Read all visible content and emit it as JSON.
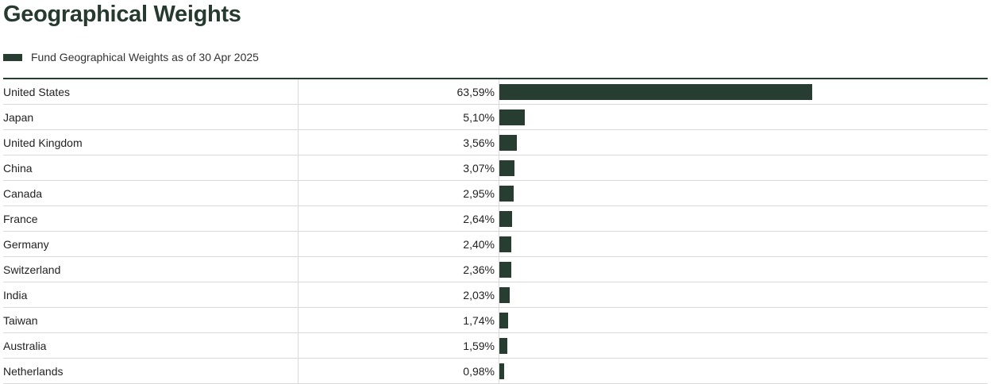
{
  "title": "Geographical Weights",
  "chart_data": {
    "type": "bar",
    "orientation": "horizontal",
    "legend": "Fund Geographical Weights as of 30 Apr 2025",
    "legend_placement": "top-left",
    "color": "#283d31",
    "xlim": [
      0,
      100
    ],
    "categories": [
      "United States",
      "Japan",
      "United Kingdom",
      "China",
      "Canada",
      "France",
      "Germany",
      "Switzerland",
      "India",
      "Taiwan",
      "Australia",
      "Netherlands"
    ],
    "values": [
      63.59,
      5.1,
      3.56,
      3.07,
      2.95,
      2.64,
      2.4,
      2.36,
      2.03,
      1.74,
      1.59,
      0.98
    ],
    "labels": [
      "63,59%",
      "5,10%",
      "3,56%",
      "3,07%",
      "2,95%",
      "2,64%",
      "2,40%",
      "2,36%",
      "2,03%",
      "1,74%",
      "1,59%",
      "0,98%"
    ]
  }
}
